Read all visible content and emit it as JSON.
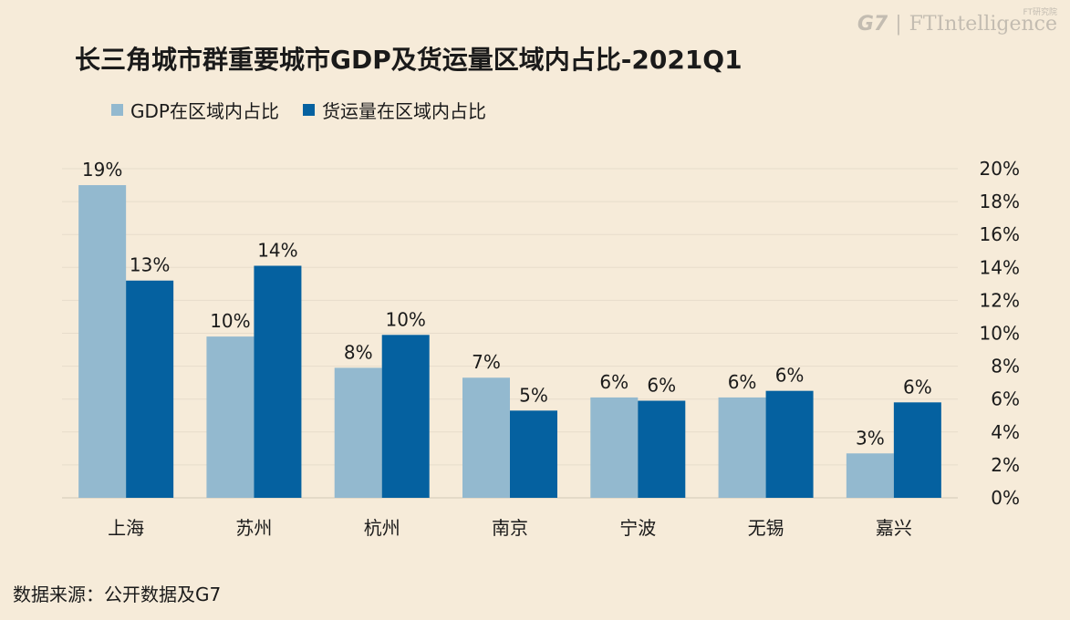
{
  "title": "长三角城市群重要城市GDP及货运量区域内占比-2021Q1",
  "brand": {
    "g7": "G7",
    "separator": "|",
    "fti": "FTIntelligence",
    "sub": "FT研究院"
  },
  "source": "数据来源：公开数据及G7",
  "colors": {
    "gdp": "#93b9cf",
    "freight": "#0561a0",
    "background": "#f6ebd9",
    "grid": "#e7dccb"
  },
  "chart_data": {
    "type": "bar",
    "categories": [
      "上海",
      "苏州",
      "杭州",
      "南京",
      "宁波",
      "无锡",
      "嘉兴"
    ],
    "series": [
      {
        "name": "GDP在区域内占比",
        "values": [
          19,
          9.8,
          7.9,
          7.3,
          6.1,
          6.1,
          2.7
        ],
        "labels": [
          "19%",
          "10%",
          "8%",
          "7%",
          "6%",
          "6%",
          "3%"
        ]
      },
      {
        "name": "货运量在区域内占比",
        "values": [
          13.2,
          14.1,
          9.9,
          5.3,
          5.9,
          6.5,
          5.8
        ],
        "labels": [
          "13%",
          "14%",
          "10%",
          "5%",
          "6%",
          "6%",
          "6%"
        ]
      }
    ],
    "ylim": [
      0,
      20
    ],
    "yticks": [
      "0%",
      "2%",
      "4%",
      "6%",
      "8%",
      "10%",
      "12%",
      "14%",
      "16%",
      "18%",
      "20%"
    ],
    "y_axis_side": "right",
    "legend": "top-left",
    "grid": true
  }
}
